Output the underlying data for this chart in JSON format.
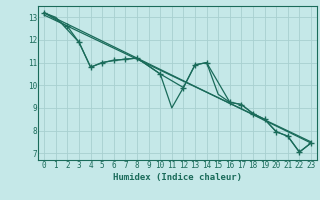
{
  "title": "",
  "xlabel": "Humidex (Indice chaleur)",
  "background_color": "#c5e8e8",
  "grid_color": "#a8d0d0",
  "line_color": "#1a6b5a",
  "xlim": [
    -0.5,
    23.5
  ],
  "ylim": [
    6.7,
    13.5
  ],
  "yticks": [
    7,
    8,
    9,
    10,
    11,
    12,
    13
  ],
  "xticks": [
    0,
    1,
    2,
    3,
    4,
    5,
    6,
    7,
    8,
    9,
    10,
    11,
    12,
    13,
    14,
    15,
    16,
    17,
    18,
    19,
    20,
    21,
    22,
    23
  ],
  "series1_x": [
    0,
    1,
    3,
    4,
    5,
    6,
    7,
    8,
    10,
    11,
    12,
    13,
    14,
    15,
    16,
    17,
    18,
    19,
    20,
    21,
    22,
    23
  ],
  "series1_y": [
    13.2,
    13.0,
    11.9,
    10.8,
    11.0,
    11.1,
    11.15,
    11.2,
    10.5,
    9.0,
    9.9,
    10.9,
    11.0,
    9.6,
    9.25,
    9.15,
    8.75,
    8.5,
    7.95,
    7.75,
    7.05,
    7.45
  ],
  "series2_x": [
    0,
    2,
    3,
    4,
    5,
    6,
    7,
    8,
    10,
    12,
    13,
    14,
    16,
    17,
    18,
    19,
    20,
    21,
    22,
    23
  ],
  "series2_y": [
    13.2,
    12.6,
    11.9,
    10.8,
    11.0,
    11.1,
    11.15,
    11.2,
    10.5,
    9.9,
    10.9,
    11.0,
    9.25,
    9.15,
    8.75,
    8.5,
    7.95,
    7.75,
    7.05,
    7.45
  ],
  "trend_x": [
    0,
    23
  ],
  "trend_y": [
    13.2,
    7.45
  ],
  "trend2_x": [
    0,
    23
  ],
  "trend2_y": [
    13.1,
    7.5
  ]
}
